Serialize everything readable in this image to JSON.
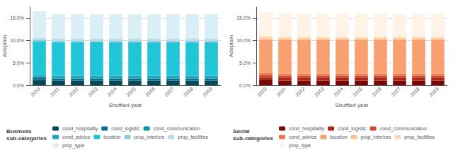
{
  "chart_data": [
    {
      "type": "bar",
      "stacked": true,
      "title": "Business\nsub-categories",
      "xlabel": "Shuffled year",
      "ylabel": "Adoption",
      "categories": [
        "2010",
        "2011",
        "2012",
        "2013",
        "2014",
        "2015",
        "2016",
        "2017",
        "2018",
        "2019"
      ],
      "series": [
        {
          "name": "cond_hospitality",
          "color": "#064858",
          "values": [
            1.2,
            1.0,
            1.0,
            1.0,
            1.0,
            1.0,
            1.0,
            1.0,
            1.0,
            1.0
          ]
        },
        {
          "name": "cond_logistic",
          "color": "#0a7088",
          "values": [
            0.5,
            0.5,
            0.5,
            0.5,
            0.5,
            0.5,
            0.5,
            0.5,
            0.5,
            0.5
          ]
        },
        {
          "name": "cond_communication",
          "color": "#1090a8",
          "values": [
            0.3,
            0.3,
            0.3,
            0.3,
            0.3,
            0.3,
            0.3,
            0.3,
            0.3,
            0.3
          ]
        },
        {
          "name": "cond_advice",
          "color": "#18a8c0",
          "values": [
            0.3,
            0.3,
            0.3,
            0.3,
            0.3,
            0.3,
            0.3,
            0.3,
            0.3,
            0.3
          ]
        },
        {
          "name": "location",
          "color": "#22c4d8",
          "values": [
            7.5,
            7.5,
            7.5,
            7.5,
            7.5,
            7.5,
            7.5,
            7.5,
            7.5,
            7.5
          ]
        },
        {
          "name": "prop_interiors",
          "color": "#90c8da",
          "values": [
            0.3,
            0.3,
            0.3,
            0.3,
            0.3,
            0.3,
            0.3,
            0.3,
            0.3,
            0.3
          ]
        },
        {
          "name": "prop_facilities",
          "color": "#b8dce8",
          "values": [
            0.5,
            0.5,
            0.5,
            0.5,
            0.5,
            0.5,
            0.5,
            0.5,
            0.5,
            0.5
          ]
        },
        {
          "name": "prop_type",
          "color": "#daeef5",
          "values": [
            6.0,
            5.5,
            5.5,
            5.5,
            5.5,
            5.5,
            5.5,
            5.5,
            5.5,
            5.5
          ]
        }
      ],
      "ylim": [
        0,
        17.5
      ],
      "yticks": [
        {
          "value": 0,
          "label": "0.0%"
        },
        {
          "value": 5,
          "label": "5.0%"
        },
        {
          "value": 10,
          "label": "10.0%"
        },
        {
          "value": 15,
          "label": "15.0%"
        }
      ],
      "grid": true,
      "legend": "bottom"
    },
    {
      "type": "bar",
      "stacked": true,
      "title": "Social\nsub-categories",
      "xlabel": "Shuffled year",
      "ylabel": "Adoption",
      "categories": [
        "2010",
        "2011",
        "2012",
        "2013",
        "2014",
        "2015",
        "2016",
        "2017",
        "2018",
        "2019"
      ],
      "series": [
        {
          "name": "cond_hospitality",
          "color": "#780808",
          "values": [
            1.1,
            1.0,
            1.0,
            1.0,
            1.0,
            1.0,
            1.0,
            1.0,
            1.0,
            1.0
          ]
        },
        {
          "name": "cond_logistic",
          "color": "#aa2818",
          "values": [
            0.6,
            0.6,
            0.6,
            0.6,
            0.6,
            0.6,
            0.6,
            0.6,
            0.6,
            0.6
          ]
        },
        {
          "name": "cond_communication",
          "color": "#cc4830",
          "values": [
            0.5,
            0.5,
            0.5,
            0.5,
            0.5,
            0.5,
            0.5,
            0.5,
            0.5,
            0.5
          ]
        },
        {
          "name": "cond_advice",
          "color": "#e87850",
          "values": [
            0.5,
            0.5,
            0.5,
            0.5,
            0.5,
            0.5,
            0.5,
            0.5,
            0.5,
            0.5
          ]
        },
        {
          "name": "location",
          "color": "#f8a070",
          "values": [
            7.5,
            7.5,
            7.5,
            7.5,
            7.5,
            7.5,
            7.5,
            7.5,
            7.5,
            7.5
          ]
        },
        {
          "name": "prop_interiors",
          "color": "#ffc090",
          "values": [
            0.3,
            0.3,
            0.3,
            0.3,
            0.3,
            0.3,
            0.3,
            0.3,
            0.3,
            0.3
          ]
        },
        {
          "name": "prop_facilities",
          "color": "#ffd8b0",
          "values": [
            0.5,
            0.4,
            0.4,
            0.4,
            0.4,
            0.4,
            0.4,
            0.4,
            0.4,
            0.4
          ]
        },
        {
          "name": "prop_type",
          "color": "#fff3e8",
          "values": [
            5.5,
            5.2,
            5.2,
            5.2,
            5.2,
            5.2,
            5.2,
            5.2,
            5.2,
            5.2
          ]
        }
      ],
      "ylim": [
        0,
        17.5
      ],
      "yticks": [
        {
          "value": 0,
          "label": "0.0%"
        },
        {
          "value": 5,
          "label": "5.0%"
        },
        {
          "value": 10,
          "label": "10.0%"
        },
        {
          "value": 15,
          "label": "15.0%"
        }
      ],
      "grid": true,
      "legend": "bottom"
    }
  ]
}
